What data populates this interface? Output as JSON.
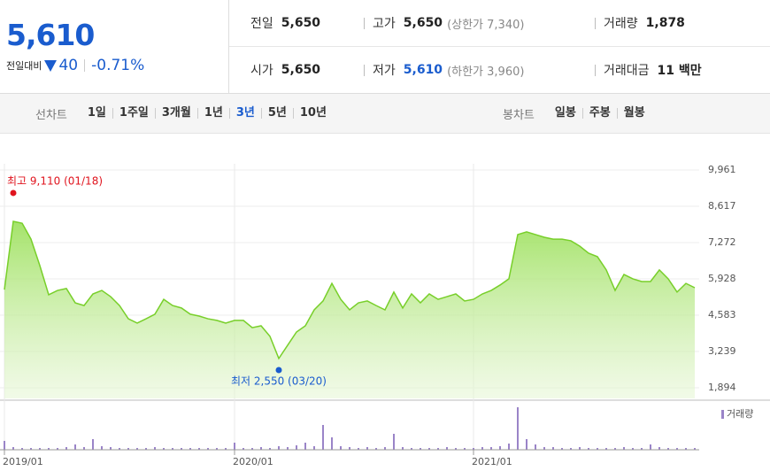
{
  "header": {
    "price": "5,610",
    "change_label": "전일대비",
    "change": "40",
    "change_pct": "-0.71%"
  },
  "stats": [
    [
      {
        "label": "전일",
        "value": "5,650"
      },
      {
        "label": "고가",
        "value": "5,650",
        "sub": "(상한가 7,340)"
      },
      {
        "label": "거래량",
        "value": "1,878"
      }
    ],
    [
      {
        "label": "시가",
        "value": "5,650"
      },
      {
        "label": "저가",
        "value": "5,610",
        "sub": "(하한가 3,960)"
      },
      {
        "label": "거래대금",
        "value": "11 백만"
      }
    ]
  ],
  "nav": {
    "line_label": "선차트",
    "periods": [
      "1일",
      "1주일",
      "3개월",
      "1년",
      "3년",
      "5년",
      "10년"
    ],
    "selected": "3년",
    "candle_label": "봉차트",
    "candles": [
      "일봉",
      "주봉",
      "월봉"
    ]
  },
  "chart_data": [
    {
      "type": "line",
      "color": "#78cf2a",
      "categories": [
        "2019/01",
        null,
        null,
        null,
        null,
        null,
        null,
        null,
        null,
        null,
        null,
        null,
        null,
        null,
        null,
        null,
        null,
        null,
        null,
        null,
        null,
        null,
        null,
        null,
        null,
        null,
        "2020/01",
        null,
        null,
        null,
        null,
        null,
        null,
        null,
        null,
        null,
        null,
        null,
        null,
        null,
        null,
        null,
        null,
        null,
        null,
        null,
        null,
        null,
        null,
        null,
        null,
        null,
        null,
        "2021/01",
        null,
        null,
        null,
        null,
        null,
        null,
        null,
        null,
        null,
        null,
        null,
        null,
        null,
        null,
        null,
        null,
        null,
        null,
        null,
        null,
        null,
        null,
        null,
        null,
        null
      ],
      "values": [
        5530,
        8060,
        7990,
        7400,
        6420,
        5340,
        5500,
        5570,
        5040,
        4940,
        5370,
        5500,
        5270,
        4940,
        4450,
        4290,
        4450,
        4620,
        5170,
        4940,
        4850,
        4620,
        4550,
        4450,
        4390,
        4290,
        4390,
        4390,
        4120,
        4190,
        3800,
        2980,
        3470,
        3960,
        4190,
        4780,
        5110,
        5760,
        5170,
        4780,
        5040,
        5110,
        4940,
        4780,
        5440,
        4850,
        5370,
        5040,
        5370,
        5170,
        5270,
        5370,
        5110,
        5170,
        5370,
        5500,
        5700,
        5930,
        7570,
        7670,
        7570,
        7470,
        7400,
        7400,
        7340,
        7140,
        6880,
        6750,
        6260,
        5500,
        6090,
        5930,
        5830,
        5830,
        6260,
        5930,
        5440,
        5760,
        5600
      ],
      "ylim": [
        1894,
        9961
      ],
      "yticks": [
        {
          "value": 1894,
          "label": "1,894"
        },
        {
          "value": 3239,
          "label": "3,239"
        },
        {
          "value": 4583,
          "label": "4,583"
        },
        {
          "value": 5928,
          "label": "5,928"
        },
        {
          "value": 7272,
          "label": "7,272"
        },
        {
          "value": 8617,
          "label": "8,617"
        },
        {
          "value": 9961,
          "label": "9,961"
        }
      ],
      "grid": true,
      "annotations": [
        {
          "text": "최고 9,110 (01/18)",
          "value": 9110,
          "color": "#e0141e"
        },
        {
          "text": "최저 2,550 (03/20)",
          "value": 2550,
          "color": "#1a5cce"
        }
      ]
    },
    {
      "type": "bar",
      "name": "거래량",
      "color": "#9a84c8",
      "ylim": [
        0,
        50
      ],
      "values": [
        10,
        3,
        2,
        2,
        2,
        2,
        2,
        3,
        6,
        3,
        12,
        4,
        3,
        2,
        2,
        2,
        2,
        3,
        2,
        2,
        2,
        2,
        2,
        2,
        2,
        2,
        8,
        2,
        2,
        3,
        2,
        4,
        3,
        5,
        8,
        4,
        28,
        14,
        4,
        3,
        2,
        3,
        2,
        3,
        18,
        3,
        2,
        2,
        2,
        2,
        3,
        2,
        2,
        2,
        3,
        3,
        4,
        7,
        48,
        12,
        6,
        3,
        3,
        2,
        2,
        3,
        2,
        2,
        2,
        2,
        3,
        2,
        2,
        6,
        3,
        2,
        2,
        2,
        2
      ]
    }
  ]
}
